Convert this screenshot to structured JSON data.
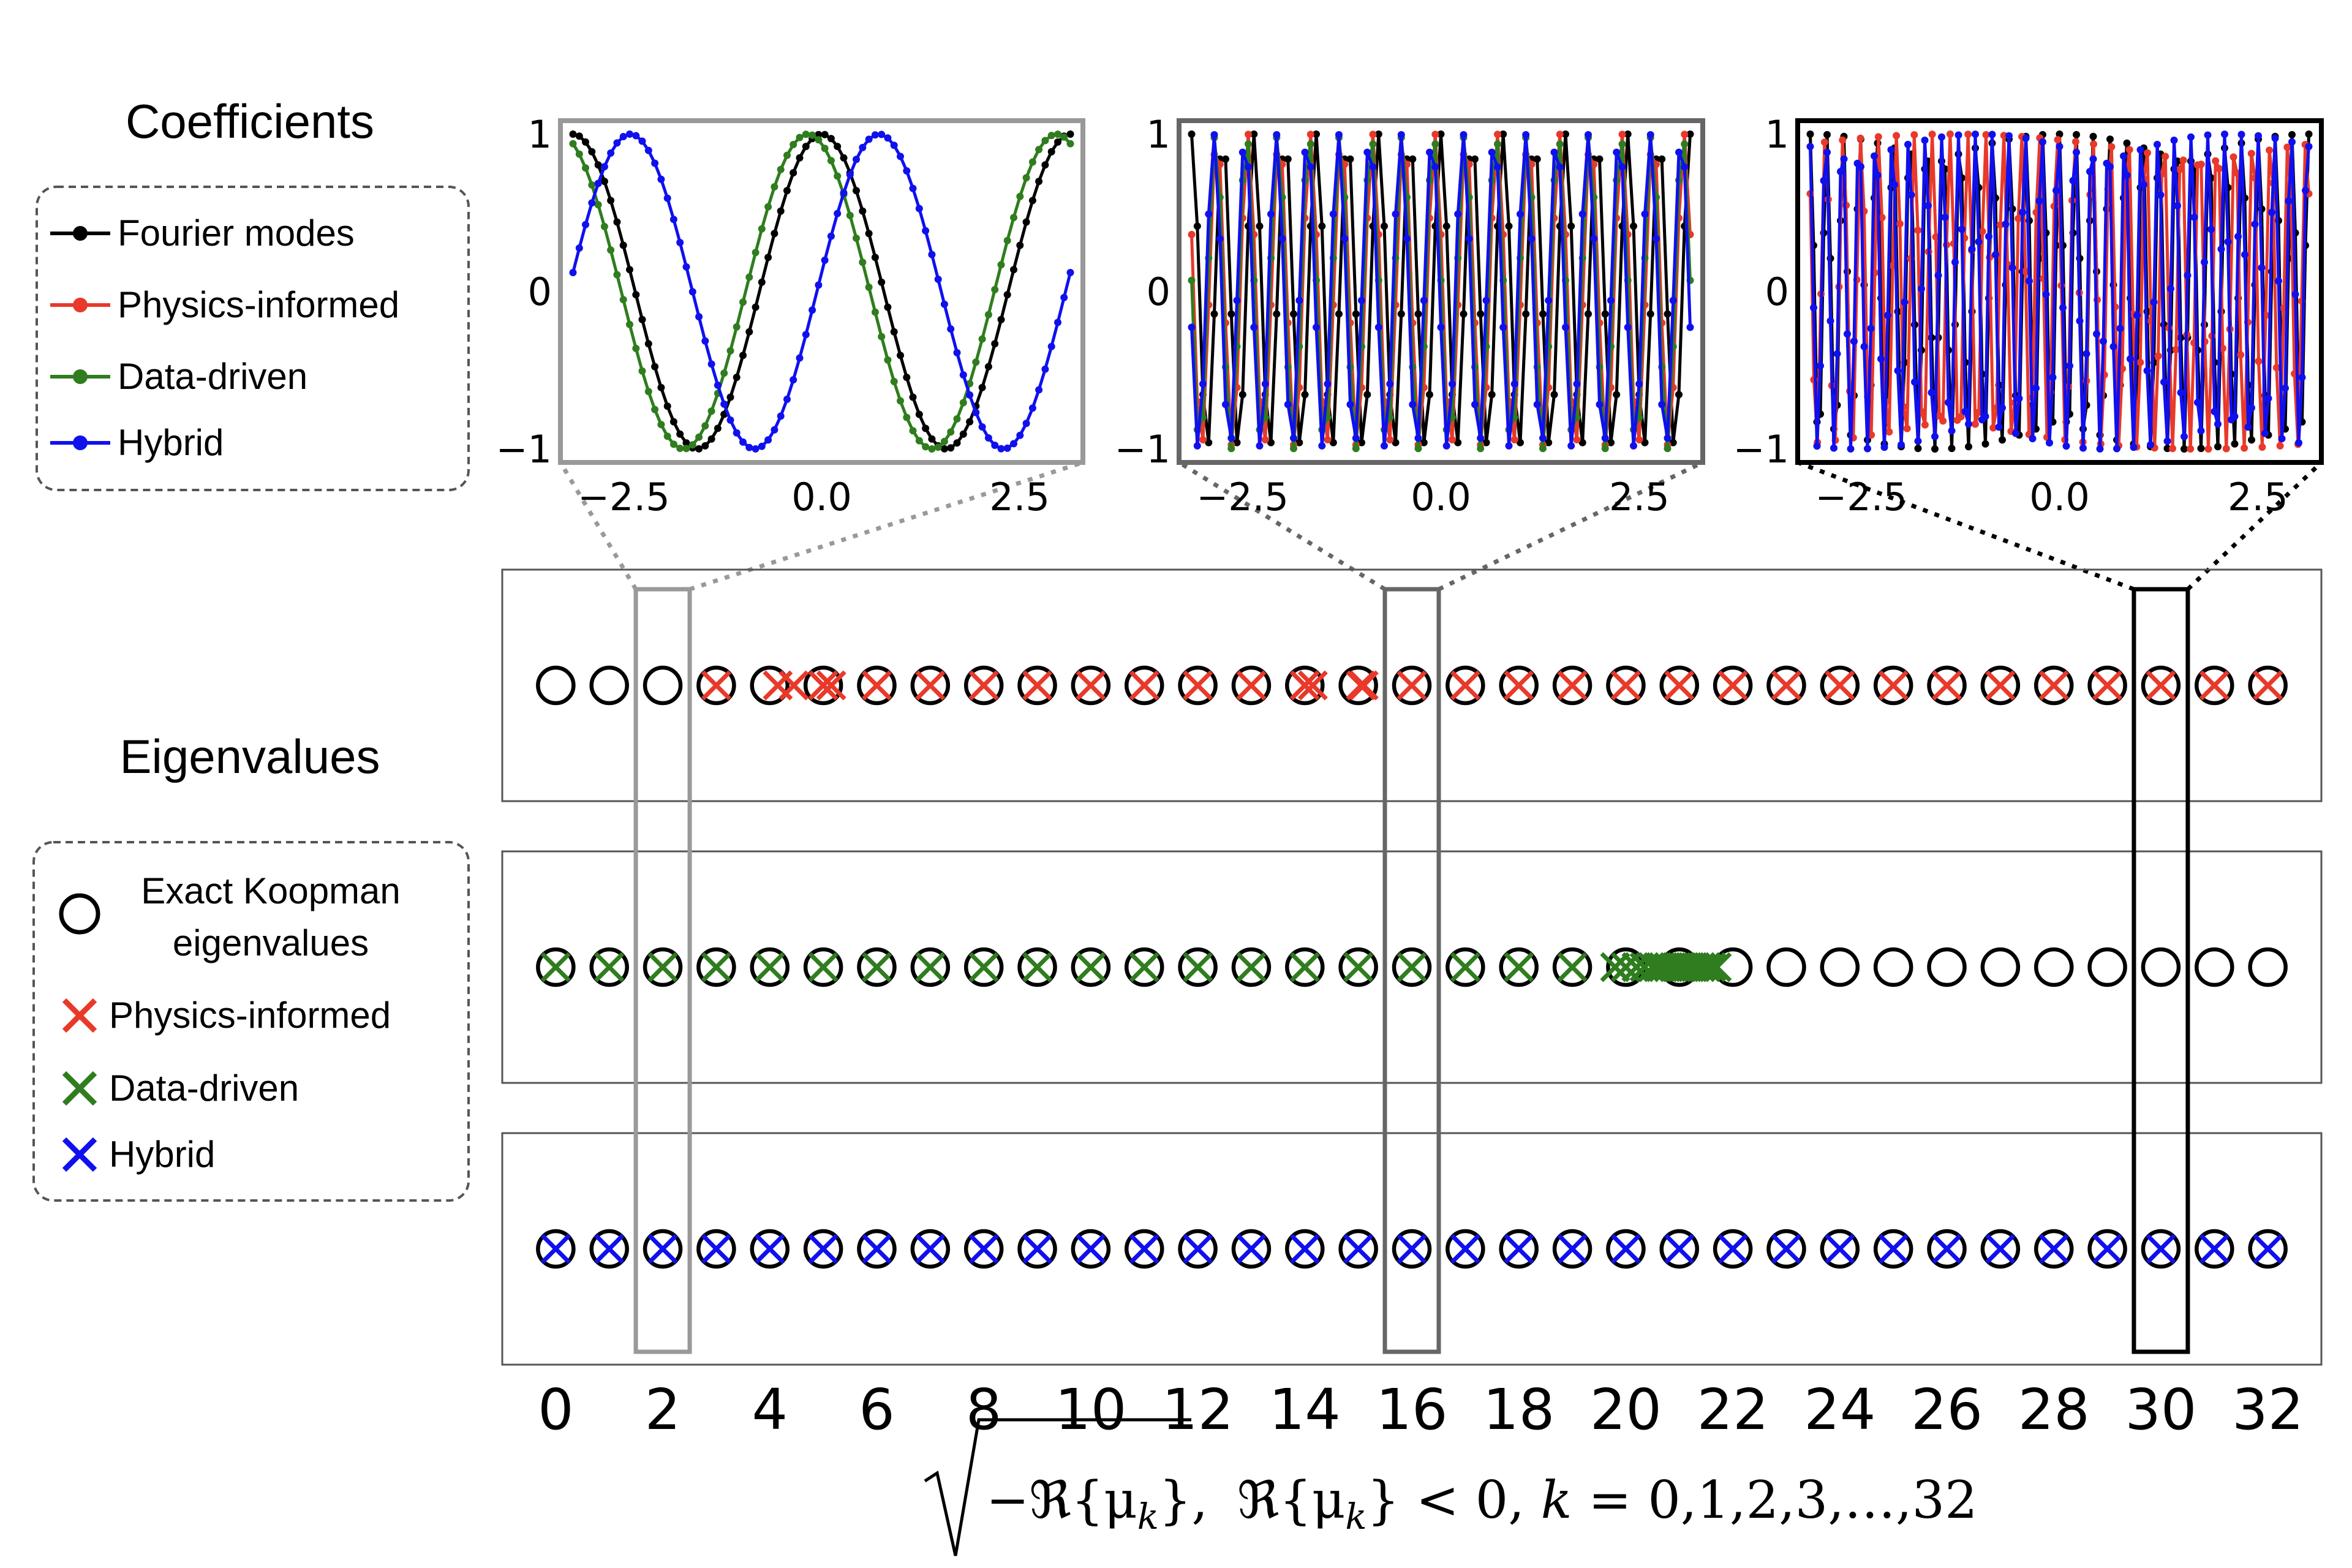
{
  "coefficients": {
    "title": "Coefficients",
    "legend": [
      {
        "label": "Fourier modes",
        "color": "#000000"
      },
      {
        "label": "Physics-informed",
        "color": "#e8392a"
      },
      {
        "label": "Data-driven",
        "color": "#2f7d1e"
      },
      {
        "label": "Hybrid",
        "color": "#1010ee"
      }
    ]
  },
  "eigenvalues": {
    "title": "Eigenvalues",
    "legend": [
      {
        "label_line1": "Exact Koopman",
        "label_line2": "eigenvalues",
        "marker": "circle",
        "color": "#000000"
      },
      {
        "label": "Physics-informed",
        "marker": "x",
        "color": "#e8392a"
      },
      {
        "label": "Data-driven",
        "marker": "x",
        "color": "#2f7d1e"
      },
      {
        "label": "Hybrid",
        "marker": "x",
        "color": "#1010ee"
      }
    ]
  },
  "chart_data": [
    {
      "type": "line",
      "panel": "coefficients-k2",
      "highlight_k": 2,
      "frame_color": "#999999",
      "xlim": [
        -3.3,
        3.3
      ],
      "ylim": [
        -1,
        1
      ],
      "xticks": [
        -2.5,
        0.0,
        2.5
      ],
      "xtick_labels": [
        "−2.5",
        "0.0",
        "2.5"
      ],
      "yticks": [
        -1,
        0,
        1
      ],
      "ytick_labels": [
        "−1",
        "0",
        "1"
      ],
      "series": [
        {
          "name": "Fourier modes",
          "color": "#000000",
          "frequency": 2,
          "phase": 0.0
        },
        {
          "name": "Data-driven",
          "color": "#2f7d1e",
          "frequency": 2,
          "phase": 0.35
        },
        {
          "name": "Hybrid",
          "color": "#1010ee",
          "frequency": 2,
          "phase": -1.45
        }
      ]
    },
    {
      "type": "line",
      "panel": "coefficients-k16",
      "highlight_k": 16,
      "frame_color": "#666666",
      "xlim": [
        -3.3,
        3.3
      ],
      "ylim": [
        -1,
        1
      ],
      "xticks": [
        -2.5,
        0.0,
        2.5
      ],
      "xtick_labels": [
        "−2.5",
        "0.0",
        "2.5"
      ],
      "yticks": [
        -1,
        0,
        1
      ],
      "ytick_labels": [
        "−1",
        "0",
        "1"
      ],
      "series": [
        {
          "name": "Fourier modes",
          "color": "#000000",
          "frequency": 16,
          "phase": 0.0
        },
        {
          "name": "Physics-informed",
          "color": "#e8392a",
          "frequency": 16,
          "phase": 1.2
        },
        {
          "name": "Data-driven",
          "color": "#2f7d1e",
          "frequency": 16,
          "phase": 1.5
        },
        {
          "name": "Hybrid",
          "color": "#1010ee",
          "frequency": 16,
          "phase": 1.8
        }
      ]
    },
    {
      "type": "line",
      "panel": "coefficients-k30",
      "highlight_k": 30,
      "frame_color": "#000000",
      "xlim": [
        -3.3,
        3.3
      ],
      "ylim": [
        -1,
        1
      ],
      "xticks": [
        -2.5,
        0.0,
        2.5
      ],
      "xtick_labels": [
        "−2.5",
        "0.0",
        "2.5"
      ],
      "yticks": [
        -1,
        0,
        1
      ],
      "ytick_labels": [
        "−1",
        "0",
        "1"
      ],
      "series": [
        {
          "name": "Fourier modes",
          "color": "#000000",
          "frequency": 30,
          "phase": 0.0
        },
        {
          "name": "Physics-informed",
          "color": "#e8392a",
          "frequency": 28,
          "phase": 0.9
        },
        {
          "name": "Hybrid",
          "color": "#1010ee",
          "frequency": 30,
          "phase": 0.4
        }
      ]
    },
    {
      "type": "scatter",
      "panel": "eigenvalues",
      "xlim": [
        -1,
        33
      ],
      "xticks": [
        0,
        2,
        4,
        6,
        8,
        10,
        12,
        14,
        16,
        18,
        20,
        22,
        24,
        26,
        28,
        30,
        32
      ],
      "xtick_labels": [
        "0",
        "2",
        "4",
        "6",
        "8",
        "10",
        "12",
        "14",
        "16",
        "18",
        "20",
        "22",
        "24",
        "26",
        "28",
        "30",
        "32"
      ],
      "xlabel_sqrt_content": "−ℜ{μ",
      "xlabel_sqrt_sub": "k",
      "xlabel_sqrt_close": "},",
      "xlabel_cond": "ℜ{μ",
      "xlabel_cond_sub": "k",
      "xlabel_cond_close": "} < 0, ",
      "xlabel_k": "k",
      "xlabel_range": " = 0,1,2,3,…,32",
      "exact_koopman_eigenvalues": [
        0,
        1,
        2,
        3,
        4,
        5,
        6,
        7,
        8,
        9,
        10,
        11,
        12,
        13,
        14,
        15,
        16,
        17,
        18,
        19,
        20,
        21,
        22,
        23,
        24,
        25,
        26,
        27,
        28,
        29,
        30,
        31,
        32
      ],
      "rows": [
        {
          "name": "Physics-informed",
          "color": "#e8392a",
          "values": [
            3,
            4.15,
            4.45,
            5,
            5.15,
            6,
            7,
            8,
            9,
            10,
            11,
            12,
            13,
            14,
            14.15,
            15.05,
            15.1,
            16,
            17,
            18,
            19,
            20,
            21,
            22,
            23,
            24,
            25,
            26,
            27,
            28,
            29,
            30,
            31,
            32
          ]
        },
        {
          "name": "Data-driven",
          "color": "#2f7d1e",
          "values": [
            0,
            1,
            2,
            3,
            4,
            5,
            6,
            7,
            8,
            9,
            10,
            11,
            12,
            13,
            14,
            15,
            16,
            17,
            18,
            19,
            19.8,
            20.0,
            20.2,
            20.35,
            20.5,
            20.6,
            20.7,
            20.8,
            20.9,
            21.0,
            21.1,
            21.2,
            21.3,
            21.4,
            21.5,
            21.6,
            21.7
          ]
        },
        {
          "name": "Hybrid",
          "color": "#1010ee",
          "values": [
            0,
            1,
            2,
            3,
            4,
            5,
            6,
            7,
            8,
            9,
            10,
            11,
            12,
            13,
            14,
            15,
            16,
            17,
            18,
            19,
            20,
            21,
            22,
            23,
            24,
            25,
            26,
            27,
            28,
            29,
            30,
            31,
            32
          ]
        }
      ],
      "highlight_boxes": [
        {
          "k": 2,
          "color": "#999999"
        },
        {
          "k": 16,
          "color": "#666666"
        },
        {
          "k": 30,
          "color": "#000000"
        }
      ]
    }
  ]
}
